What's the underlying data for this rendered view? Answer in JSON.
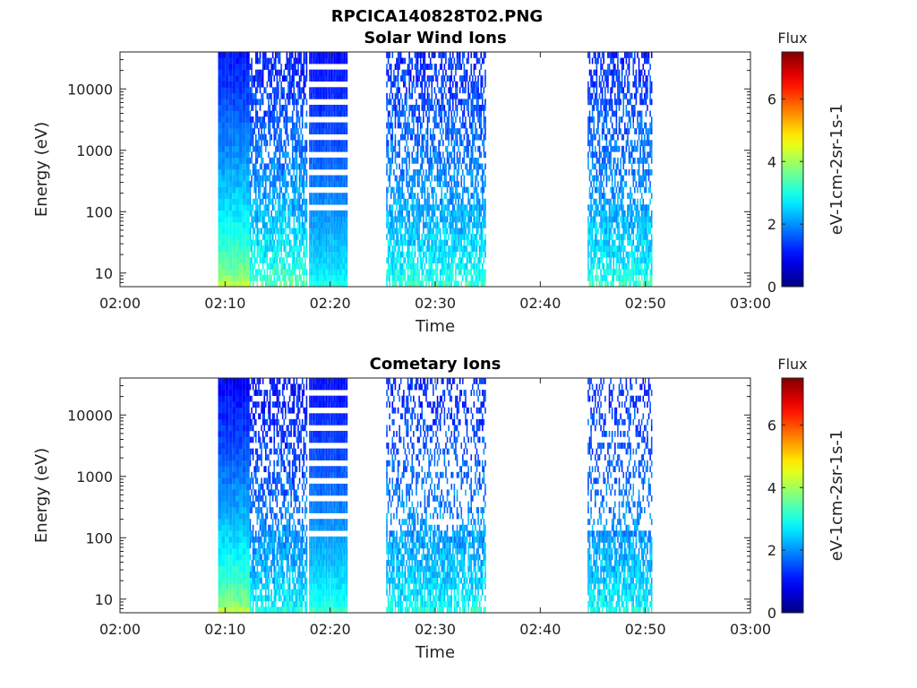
{
  "figure": {
    "filename": "RPCICA140828T02.PNG"
  },
  "chart_data": [
    {
      "type": "heatmap",
      "title": "Solar Wind Ions",
      "xlabel": "Time",
      "ylabel": "Energy (eV)",
      "x_ticks": [
        "02:00",
        "02:10",
        "02:20",
        "02:30",
        "02:40",
        "02:50",
        "03:00"
      ],
      "xlim": [
        "02:00",
        "03:00"
      ],
      "y_scale": "log",
      "y_ticks": [
        "10",
        "100",
        "1000",
        "10000"
      ],
      "ylim": [
        6,
        40000
      ],
      "colorbar": {
        "title": "Flux",
        "unit": "eV-1cm-2sr-1s-1",
        "range": [
          0,
          7.5
        ],
        "ticks": [
          "0",
          "2",
          "4",
          "6"
        ],
        "colormap": "jet"
      },
      "blocks": [
        {
          "t_start": "02:09:20",
          "t_end": "02:12:20",
          "style": "solid",
          "low_energy_flux": 4.2,
          "high_energy_flux": 1.1
        },
        {
          "t_start": "02:12:20",
          "t_end": "02:17:50",
          "style": "sparse-high",
          "density": 0.65,
          "low_energy_flux": 3.5,
          "high_energy_flux": 1.1
        },
        {
          "t_start": "02:18:00",
          "t_end": "02:21:40",
          "style": "banded",
          "low_energy_flux": 3.0,
          "high_energy_flux": 1.0
        },
        {
          "t_start": "02:25:20",
          "t_end": "02:34:50",
          "style": "sparse-high",
          "density": 0.55,
          "low_energy_flux": 3.2,
          "high_energy_flux": 1.2
        },
        {
          "t_start": "02:44:30",
          "t_end": "02:50:40",
          "style": "sparse-high",
          "density": 0.55,
          "low_energy_flux": 3.2,
          "high_energy_flux": 1.2
        }
      ]
    },
    {
      "type": "heatmap",
      "title": "Cometary Ions",
      "xlabel": "Time",
      "ylabel": "Energy (eV)",
      "x_ticks": [
        "02:00",
        "02:10",
        "02:20",
        "02:30",
        "02:40",
        "02:50",
        "03:00"
      ],
      "xlim": [
        "02:00",
        "03:00"
      ],
      "y_scale": "log",
      "y_ticks": [
        "10",
        "100",
        "1000",
        "10000"
      ],
      "ylim": [
        6,
        40000
      ],
      "colorbar": {
        "title": "Flux",
        "unit": "eV-1cm-2sr-1s-1",
        "range": [
          0,
          7.5
        ],
        "ticks": [
          "0",
          "2",
          "4",
          "6"
        ],
        "colormap": "jet"
      },
      "blocks": [
        {
          "t_start": "02:09:20",
          "t_end": "02:12:20",
          "style": "solid",
          "low_energy_flux": 4.2,
          "high_energy_flux": 0.9
        },
        {
          "t_start": "02:12:20",
          "t_end": "02:17:50",
          "style": "sparse-high",
          "density": 0.5,
          "low_energy_flux": 3.0,
          "high_energy_flux": 1.0
        },
        {
          "t_start": "02:18:00",
          "t_end": "02:21:40",
          "style": "banded",
          "low_energy_flux": 3.2,
          "high_energy_flux": 1.0
        },
        {
          "t_start": "02:25:20",
          "t_end": "02:34:50",
          "style": "sparse-high",
          "density": 0.35,
          "low_energy_flux": 3.0,
          "high_energy_flux": 1.2
        },
        {
          "t_start": "02:44:30",
          "t_end": "02:50:40",
          "style": "sparse-high",
          "density": 0.35,
          "low_energy_flux": 3.0,
          "high_energy_flux": 1.2
        }
      ]
    }
  ]
}
